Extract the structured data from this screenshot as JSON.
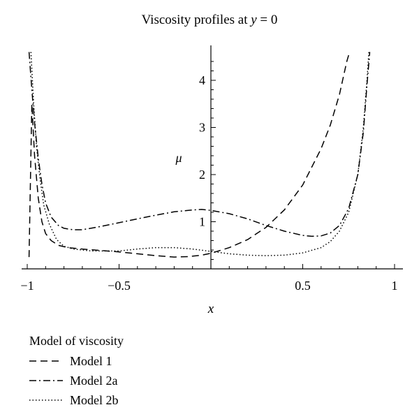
{
  "chart_data": {
    "type": "line",
    "title": "Viscosity profiles at y = 0",
    "title_parts": {
      "prefix": "Viscosity profiles at ",
      "var": "y",
      "suffix": " = 0"
    },
    "xlabel": "x",
    "ylabel": "μ",
    "xlim": [
      -1,
      1
    ],
    "ylim": [
      0,
      4.6
    ],
    "x_ticks": [
      -1,
      -0.5,
      0.5,
      1
    ],
    "x_tick_labels": [
      "−1",
      "−0.5",
      "0.5",
      "1"
    ],
    "y_ticks": [
      1,
      2,
      3,
      4
    ],
    "y_tick_labels": [
      "1",
      "2",
      "3",
      "4"
    ],
    "grid": false,
    "legend_title": "Model of viscosity",
    "legend_position": "bottom-left",
    "series": [
      {
        "name": "Model 1",
        "style": "dashed",
        "points": [
          [
            -0.99,
            0.25
          ],
          [
            -0.975,
            3.5
          ],
          [
            -0.96,
            2.4
          ],
          [
            -0.94,
            1.5
          ],
          [
            -0.92,
            1.0
          ],
          [
            -0.9,
            0.75
          ],
          [
            -0.87,
            0.6
          ],
          [
            -0.83,
            0.5
          ],
          [
            -0.78,
            0.45
          ],
          [
            -0.7,
            0.42
          ],
          [
            -0.6,
            0.39
          ],
          [
            -0.5,
            0.36
          ],
          [
            -0.4,
            0.32
          ],
          [
            -0.3,
            0.28
          ],
          [
            -0.2,
            0.25
          ],
          [
            -0.12,
            0.26
          ],
          [
            -0.05,
            0.29
          ],
          [
            0,
            0.33
          ],
          [
            0.1,
            0.45
          ],
          [
            0.2,
            0.62
          ],
          [
            0.3,
            0.88
          ],
          [
            0.4,
            1.25
          ],
          [
            0.5,
            1.78
          ],
          [
            0.6,
            2.55
          ],
          [
            0.65,
            3.05
          ],
          [
            0.7,
            3.7
          ],
          [
            0.74,
            4.4
          ],
          [
            0.755,
            4.6
          ]
        ]
      },
      {
        "name": "Model 2a",
        "style": "dash-dot",
        "points": [
          [
            -0.99,
            4.6
          ],
          [
            -0.975,
            3.8
          ],
          [
            -0.96,
            3.1
          ],
          [
            -0.94,
            2.35
          ],
          [
            -0.92,
            1.8
          ],
          [
            -0.9,
            1.4
          ],
          [
            -0.87,
            1.1
          ],
          [
            -0.83,
            0.92
          ],
          [
            -0.8,
            0.86
          ],
          [
            -0.75,
            0.83
          ],
          [
            -0.7,
            0.83
          ],
          [
            -0.6,
            0.9
          ],
          [
            -0.5,
            0.98
          ],
          [
            -0.4,
            1.06
          ],
          [
            -0.3,
            1.14
          ],
          [
            -0.2,
            1.21
          ],
          [
            -0.1,
            1.25
          ],
          [
            -0.05,
            1.26
          ],
          [
            0,
            1.24
          ],
          [
            0.1,
            1.17
          ],
          [
            0.2,
            1.06
          ],
          [
            0.3,
            0.92
          ],
          [
            0.4,
            0.8
          ],
          [
            0.5,
            0.71
          ],
          [
            0.55,
            0.69
          ],
          [
            0.6,
            0.7
          ],
          [
            0.65,
            0.76
          ],
          [
            0.7,
            0.92
          ],
          [
            0.75,
            1.28
          ],
          [
            0.8,
            2.0
          ],
          [
            0.83,
            2.9
          ],
          [
            0.85,
            3.9
          ],
          [
            0.865,
            4.6
          ]
        ]
      },
      {
        "name": "Model 2b",
        "style": "dotted",
        "points": [
          [
            -0.98,
            4.6
          ],
          [
            -0.965,
            3.5
          ],
          [
            -0.95,
            2.6
          ],
          [
            -0.93,
            1.9
          ],
          [
            -0.91,
            1.35
          ],
          [
            -0.88,
            0.95
          ],
          [
            -0.84,
            0.62
          ],
          [
            -0.8,
            0.48
          ],
          [
            -0.75,
            0.42
          ],
          [
            -0.65,
            0.38
          ],
          [
            -0.5,
            0.38
          ],
          [
            -0.4,
            0.42
          ],
          [
            -0.3,
            0.45
          ],
          [
            -0.2,
            0.45
          ],
          [
            -0.1,
            0.42
          ],
          [
            0,
            0.37
          ],
          [
            0.1,
            0.32
          ],
          [
            0.2,
            0.29
          ],
          [
            0.3,
            0.28
          ],
          [
            0.4,
            0.29
          ],
          [
            0.5,
            0.34
          ],
          [
            0.6,
            0.45
          ],
          [
            0.65,
            0.58
          ],
          [
            0.7,
            0.8
          ],
          [
            0.75,
            1.2
          ],
          [
            0.8,
            2.0
          ],
          [
            0.83,
            3.0
          ],
          [
            0.85,
            4.0
          ],
          [
            0.86,
            4.6
          ]
        ]
      }
    ]
  }
}
